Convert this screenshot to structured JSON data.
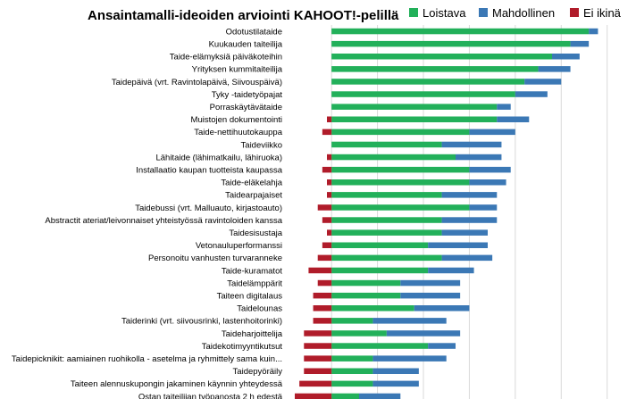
{
  "chart_data": {
    "type": "bar",
    "stacking": "diverging",
    "title": "Ansaintamalli-ideoiden arviointi KAHOOT!-pelillä",
    "legend_position": "top-right",
    "grid": true,
    "xlim": [
      -8,
      62
    ],
    "grid_step": 10,
    "colors": {
      "Loistava": "#22b05a",
      "Mahdollinen": "#3b78b5",
      "Ei ikinä": "#b01c2a"
    },
    "categories": [
      "Odotustilataide",
      "Kuukauden taiteilija",
      "Taide-elämyksiä päiväkoteihin",
      "Yrityksen kummitaiteilija",
      "Taidepäivä (vrt. Ravintolapäivä, Siivouspäivä)",
      "Tyky -taidetyöpajat",
      "Porraskäytävätaide",
      "Muistojen dokumentointi",
      "Taide-nettihuutokauppa",
      "Taideviikko",
      "Lähitaide (lähimatkailu, lähiruoka)",
      "Installaatio kaupan tuotteista kaupassa",
      "Taide-eläkelahja",
      "Taidearpajaiset",
      "Taidebussi (vrt. Malluauto, kirjastoauto)",
      "Abstractit ateriat/leivonnaiset yhteistyössä ravintoloiden kanssa",
      "Taidesisustaja",
      "Vetonauluperformanssi",
      "Personoitu vanhusten turvaranneke",
      "Taide-kuramatot",
      "Taidelämppärit",
      "Taiteen digitalaus",
      "Taidelounas",
      "Taiderinki (vrt. siivousrinki, lastenhoitorinki)",
      "Taideharjoittelija",
      "Taidekotimyyntikutsut",
      "Taidepicknikit: aamiainen ruohikolla - asetelma ja ryhmittely sama kuin...",
      "Taidepyöräily",
      "Taiteen alennuskupongin jakaminen käynnin yhteydessä",
      "Ostan taiteilijan työpanosta 2 h edestä"
    ],
    "series": [
      {
        "name": "Loistava",
        "values": [
          56,
          52,
          48,
          45,
          42,
          40,
          36,
          36,
          30,
          24,
          27,
          30,
          30,
          24,
          30,
          24,
          24,
          21,
          24,
          21,
          15,
          15,
          18,
          9,
          12,
          21,
          9,
          9,
          9,
          6
        ]
      },
      {
        "name": "Mahdollinen",
        "values": [
          2,
          4,
          6,
          7,
          8,
          7,
          3,
          7,
          10,
          13,
          10,
          9,
          8,
          12,
          6,
          12,
          10,
          13,
          11,
          10,
          13,
          13,
          12,
          16,
          16,
          6,
          16,
          10,
          10,
          9
        ]
      },
      {
        "name": "Ei ikinä",
        "values": [
          0,
          0,
          0,
          0,
          0,
          0,
          0,
          1,
          2,
          0,
          1,
          2,
          1,
          1,
          3,
          2,
          1,
          2,
          3,
          5,
          3,
          4,
          4,
          4,
          6,
          6,
          6,
          6,
          7,
          8
        ]
      }
    ]
  }
}
